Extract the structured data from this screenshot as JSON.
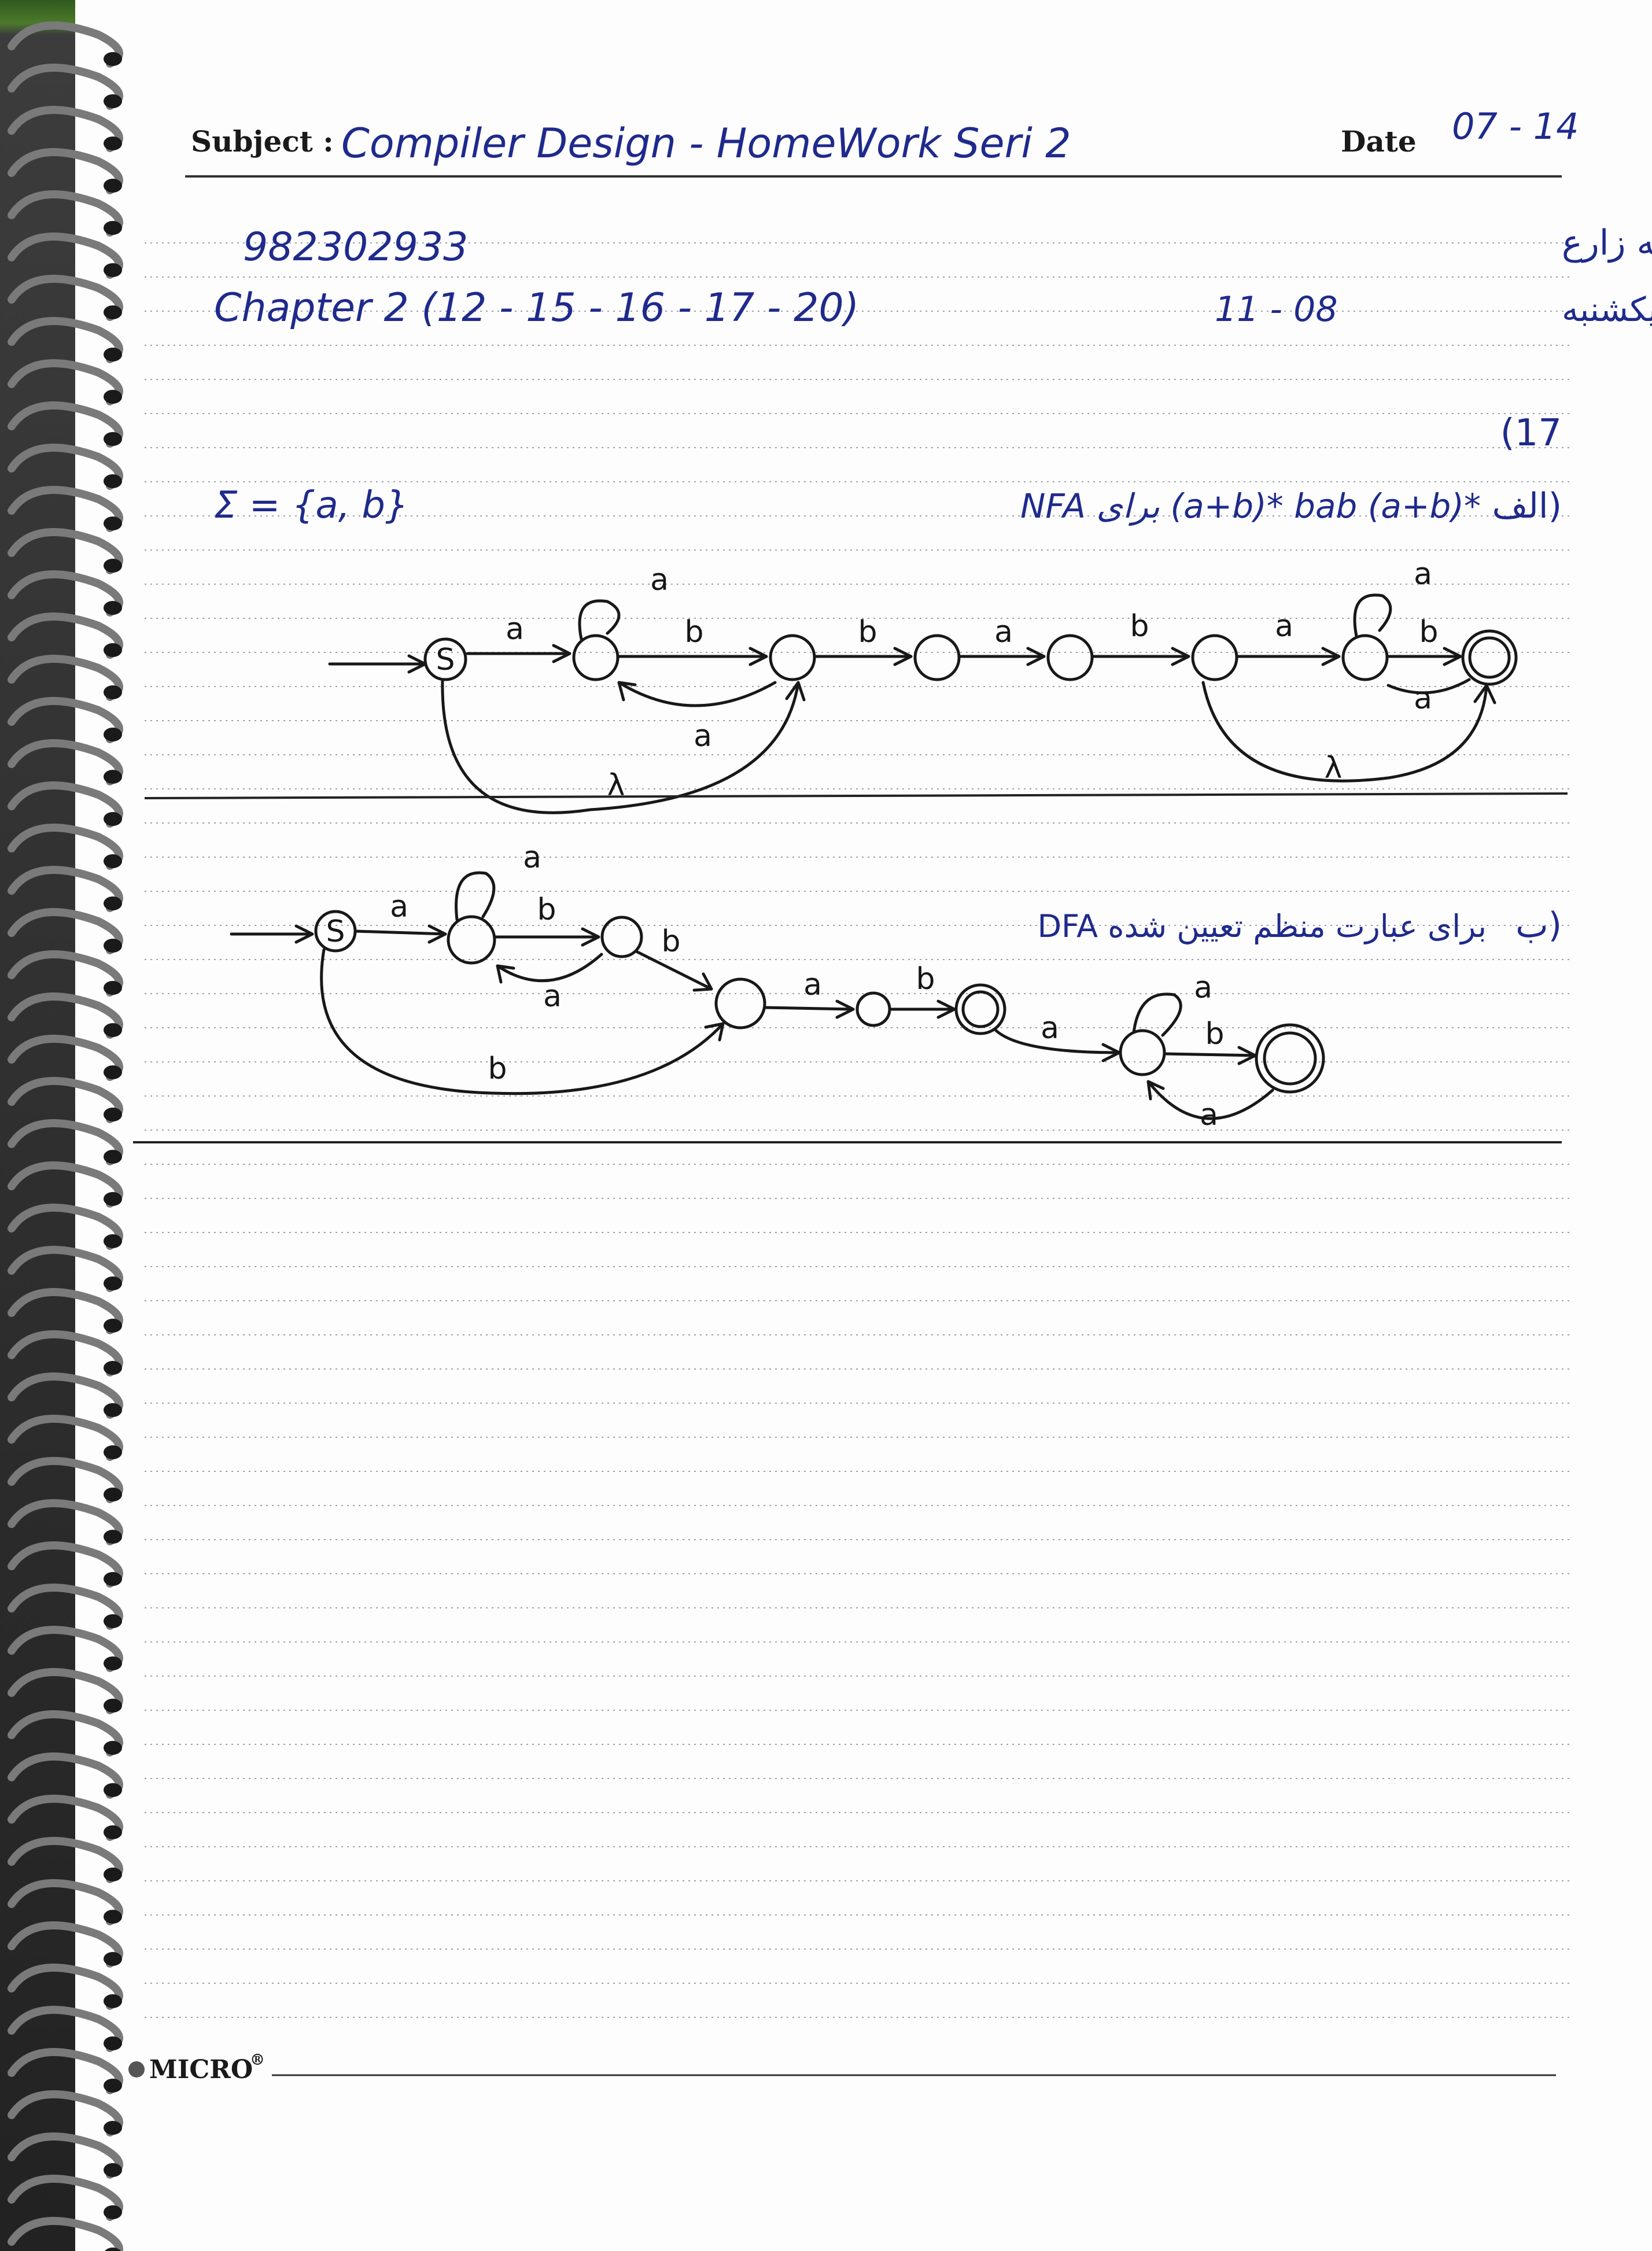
{
  "header": {
    "subject_label": "Subject :",
    "subject_text": "Compiler Design - HomeWork Seri 2",
    "date_label": "Date",
    "date_value": "07 - 14"
  },
  "meta": {
    "student_id": "982302933",
    "chapter": "Chapter 2 (12 - 15 - 16 - 17 - 20)",
    "author_fa": "عرفان یکه زارع",
    "class_fa": "کلاس یکشنبه",
    "class_time": "11 - 08"
  },
  "problem": {
    "number": "(17",
    "alphabet": "Σ = {a, b}",
    "part_a_prefix": "الف)",
    "part_a_text": "NFA برای (a+b)* bab (a+b)*",
    "part_b_prefix": "ب)",
    "part_b_text": "DFA برای عبارت منظم تعیین شده"
  },
  "nfa": {
    "start_state": "S",
    "symbols": [
      "a",
      "b",
      "λ"
    ]
  },
  "dfa": {
    "start_state": "S",
    "symbols": [
      "a",
      "b"
    ]
  },
  "footer": {
    "brand": "MICRO",
    "registered": "®"
  }
}
